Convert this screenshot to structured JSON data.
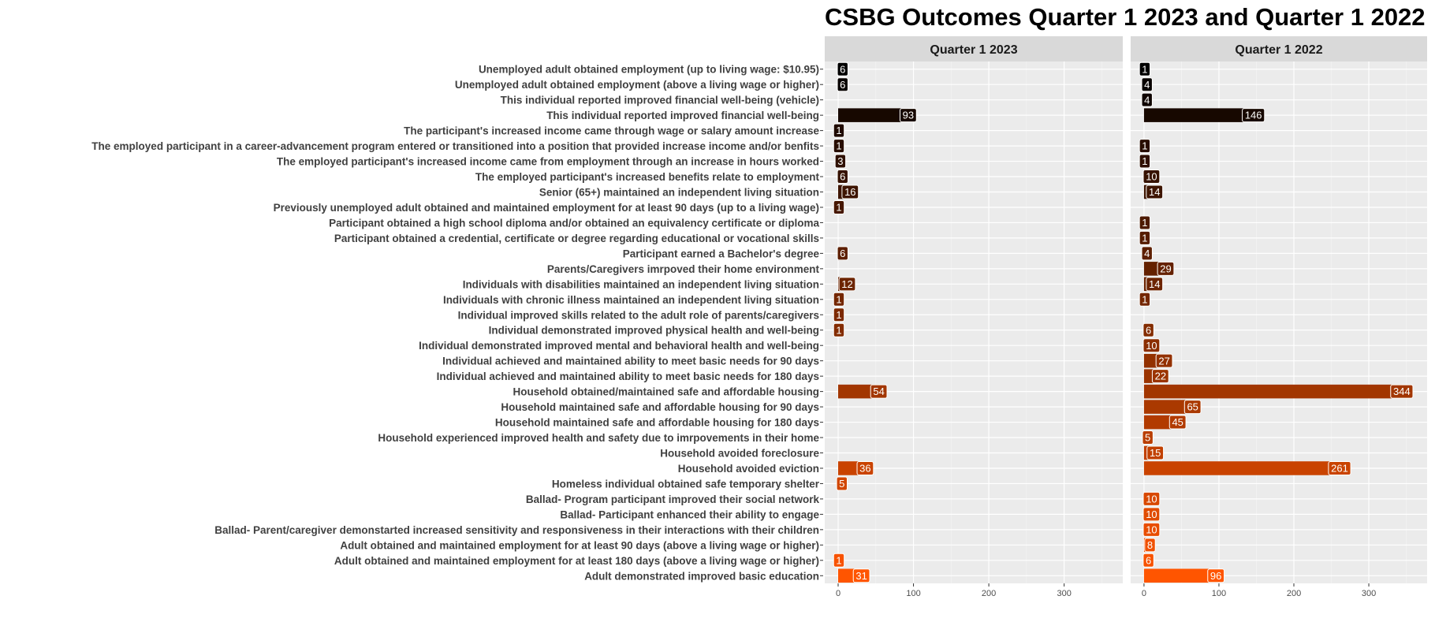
{
  "chart_data": {
    "type": "bar",
    "orientation": "horizontal",
    "title": "CSBG Outcomes Quarter 1 2023 and Quarter 1 2022",
    "xlabel": "",
    "ylabel": "",
    "xlim": [
      0,
      360
    ],
    "x_ticks": [
      0,
      100,
      200,
      300
    ],
    "grid": true,
    "legend": "none",
    "color_low": "#000000",
    "color_high": "#ff5500",
    "categories": [
      "Unemployed adult obtained employment (up to living wage: $10.95)",
      "Unemployed adult obtained employment (above a living wage or higher)",
      "This individual reported improved financial well-being (vehicle)",
      "This individual reported improved financial well-being",
      "The participant's increased income came through wage or salary amount increase",
      "The employed participant in a career-advancement program entered or transitioned into a position that provided increase income and/or benfits",
      "The employed participant's increased income came from employment through an increase in hours worked",
      "The employed participant's increased benefits relate to employment",
      "Senior (65+) maintained an independent living situation",
      "Previously unemployed adult obtained and maintained employment for at least 90 days (up to a living wage)",
      "Participant obtained a high school diploma and/or obtained an equivalency certificate or diploma",
      "Participant obtained a credential, certificate or degree regarding educational or vocational skills",
      "Participant earned a Bachelor's degree",
      "Parents/Caregivers imrpoved their home environment",
      "Individuals with disabilities maintained an independent living situation",
      "Individuals with chronic illness maintained an independent living situation",
      "Individual improved skills related to the adult role of parents/caregivers",
      "Individual demonstrated improved physical health and well-being",
      "Individual demonstrated improved mental and behavioral health and well-being",
      "Individual achieved and maintained ability to meet basic needs for 90 days",
      "Individual achieved and maintained ability to meet basic needs for 180 days",
      "Household obtained/maintained safe and affordable housing",
      "Household maintained safe and affordable housing for 90 days",
      "Household maintained safe and affordable housing for 180 days",
      "Household experienced improved health and safety due to imrpovements in their home",
      "Household avoided foreclosure",
      "Household avoided eviction",
      "Homeless individual obtained safe temporary shelter",
      "Ballad- Program participant improved their social network",
      "Ballad- Participant enhanced their ability to engage",
      "Ballad- Parent/caregiver demonstarted increased sensitivity and responsiveness in their interactions with their children",
      "Adult obtained and maintained employment for at least 90 days (above a living wage or higher)",
      "Adult obtained and maintained employment for at least 180 days (above a living wage or higher)",
      "Adult demonstrated improved basic education"
    ],
    "series": [
      {
        "name": "Quarter 1 2023",
        "values": [
          6,
          6,
          null,
          93,
          1,
          1,
          3,
          6,
          16,
          1,
          null,
          null,
          6,
          null,
          12,
          1,
          1,
          1,
          null,
          null,
          null,
          54,
          null,
          null,
          null,
          null,
          36,
          5,
          null,
          null,
          null,
          null,
          1,
          31
        ]
      },
      {
        "name": "Quarter 1 2022",
        "values": [
          1,
          4,
          4,
          146,
          null,
          1,
          1,
          10,
          14,
          null,
          1,
          1,
          4,
          29,
          14,
          1,
          null,
          6,
          10,
          27,
          22,
          344,
          65,
          45,
          5,
          15,
          261,
          null,
          10,
          10,
          10,
          8,
          6,
          96
        ]
      }
    ]
  }
}
